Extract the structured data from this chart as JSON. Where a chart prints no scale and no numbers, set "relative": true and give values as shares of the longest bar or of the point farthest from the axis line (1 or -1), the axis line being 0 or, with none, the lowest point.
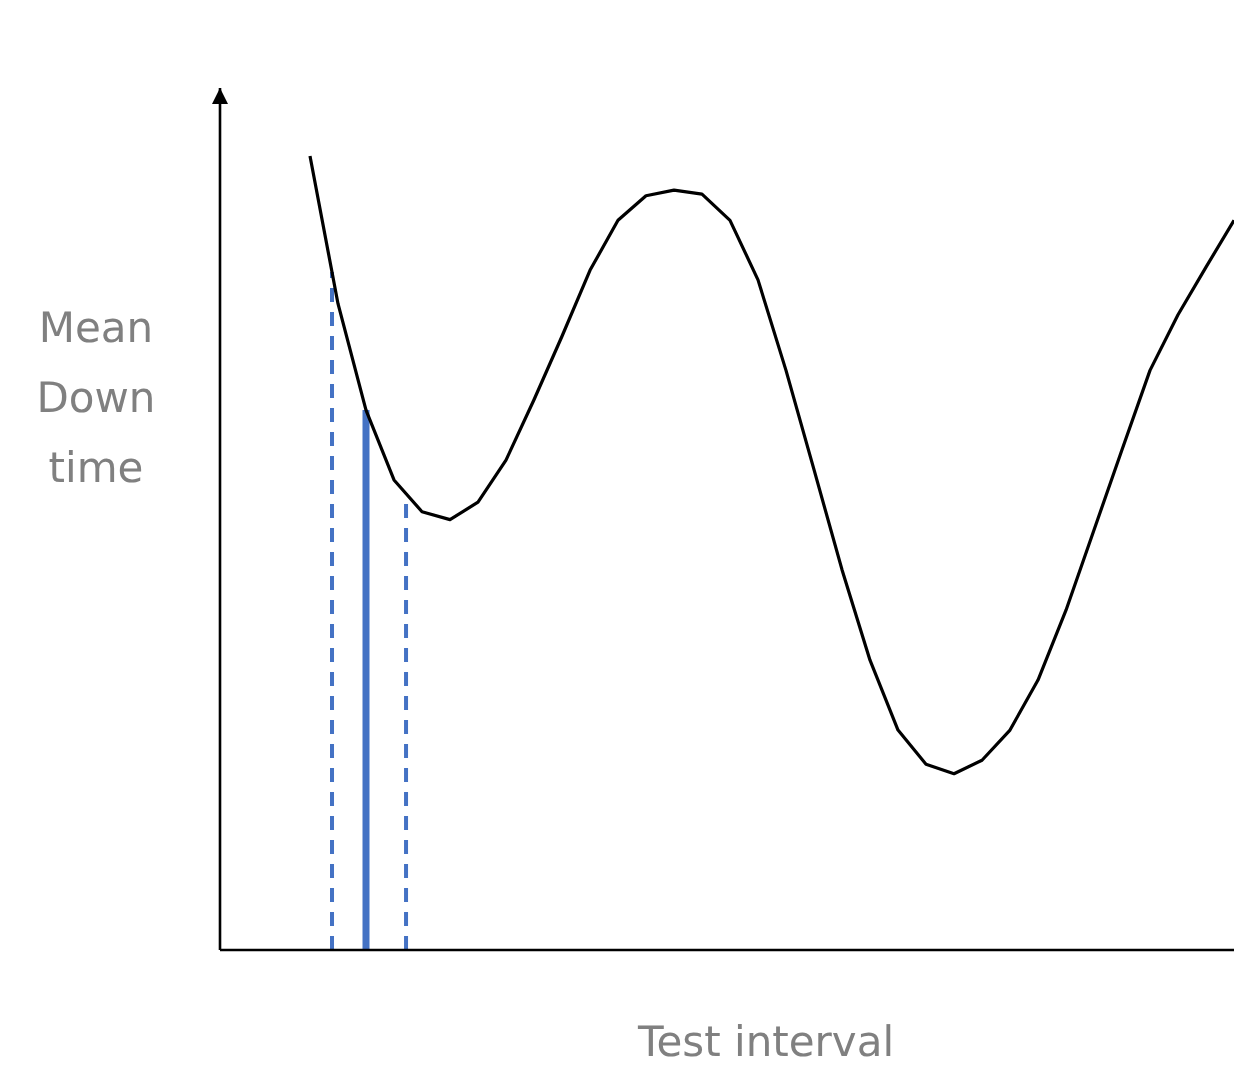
{
  "chart_data": {
    "type": "line",
    "xlabel": "Test interval",
    "ylabel": "Mean Down time",
    "relative": true,
    "categories": [
      null,
      null,
      null,
      null,
      null,
      null,
      null,
      null,
      null,
      null,
      null,
      null,
      null,
      null,
      null,
      null,
      null,
      null,
      null,
      null,
      null,
      null,
      null,
      null,
      null,
      null,
      null,
      null,
      null,
      null,
      null,
      null,
      null,
      null
    ],
    "series": [
      {
        "color": "#000000",
        "values": [
          1.0,
          0.814,
          0.68,
          0.592,
          0.552,
          0.542,
          0.564,
          0.617,
          0.693,
          0.773,
          0.856,
          0.919,
          0.95,
          0.957,
          0.952,
          0.919,
          0.844,
          0.73,
          0.605,
          0.479,
          0.365,
          0.277,
          0.234,
          0.222,
          0.239,
          0.277,
          0.34,
          0.428,
          0.529,
          0.63,
          0.73,
          0.8,
          0.86,
          0.919
        ]
      }
    ]
  }
}
